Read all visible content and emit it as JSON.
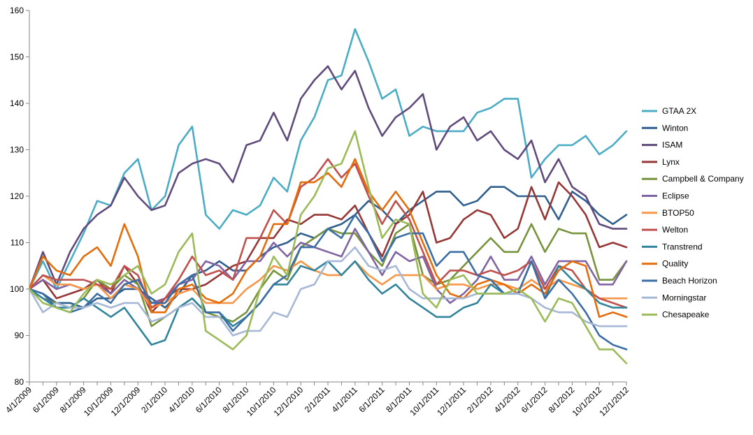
{
  "chart_data": {
    "type": "line",
    "title": "",
    "xlabel": "",
    "ylabel": "",
    "ylim": [
      80,
      160
    ],
    "yticks": [
      80,
      90,
      100,
      110,
      120,
      130,
      140,
      150,
      160
    ],
    "grid": false,
    "legend_position": "right",
    "x_tick_labels": [
      "4/1/2009",
      "6/1/2009",
      "8/1/2009",
      "10/1/2009",
      "12/1/2009",
      "2/1/2010",
      "4/1/2010",
      "6/1/2010",
      "8/1/2010",
      "10/1/2010",
      "12/1/2010",
      "2/1/2011",
      "4/1/2011",
      "6/1/2011",
      "8/1/2011",
      "10/1/2011",
      "12/1/2011",
      "2/1/2012",
      "4/1/2012",
      "6/1/2012",
      "8/1/2012",
      "10/1/2012",
      "12/1/2012"
    ],
    "x_start": "4/1/2009",
    "x_end": "12/1/2012",
    "series": [
      {
        "name": "GTAA 2X",
        "color": "#4bacc6",
        "values": [
          100,
          106,
          100,
          106,
          112,
          119,
          118,
          125,
          128,
          117,
          120,
          131,
          135,
          116,
          113,
          117,
          116,
          118,
          124,
          121,
          132,
          137,
          145,
          146,
          156,
          149,
          141,
          143,
          133,
          135,
          134,
          134,
          134,
          138,
          139,
          141,
          141,
          124,
          128,
          131,
          131,
          133,
          129,
          131,
          134
        ]
      },
      {
        "name": "Winton",
        "color": "#2e5f8f",
        "values": [
          100,
          99,
          97,
          97,
          96,
          98,
          98,
          100,
          100,
          98,
          96,
          99,
          103,
          104,
          106,
          104,
          104,
          107,
          109,
          110,
          112,
          111,
          113,
          114,
          116,
          119,
          117,
          114,
          117,
          119,
          121,
          121,
          118,
          119,
          122,
          122,
          120,
          120,
          120,
          115,
          121,
          119,
          116,
          114,
          116
        ]
      },
      {
        "name": "ISAM",
        "color": "#604a7b",
        "values": [
          100,
          108,
          101,
          108,
          113,
          116,
          118,
          124,
          120,
          117,
          118,
          125,
          127,
          128,
          127,
          123,
          131,
          132,
          138,
          132,
          141,
          145,
          148,
          143,
          147,
          139,
          133,
          137,
          139,
          142,
          130,
          135,
          137,
          132,
          134,
          130,
          128,
          132,
          123,
          128,
          122,
          120,
          114,
          113,
          113
        ]
      },
      {
        "name": "Lynx",
        "color": "#953735",
        "values": [
          100,
          102,
          98,
          99,
          100,
          102,
          99,
          105,
          101,
          95,
          98,
          100,
          100,
          101,
          103,
          105,
          106,
          111,
          111,
          115,
          114,
          116,
          116,
          115,
          118,
          112,
          107,
          114,
          116,
          121,
          110,
          111,
          115,
          117,
          116,
          111,
          113,
          122,
          115,
          123,
          120,
          116,
          109,
          110,
          109
        ]
      },
      {
        "name": "Campbell & Company",
        "color": "#77933c",
        "values": [
          100,
          98,
          97,
          96,
          98,
          102,
          100,
          103,
          101,
          92,
          94,
          96,
          98,
          95,
          94,
          93,
          95,
          100,
          104,
          102,
          109,
          111,
          113,
          112,
          112,
          108,
          105,
          112,
          114,
          103,
          101,
          102,
          105,
          108,
          111,
          108,
          108,
          114,
          108,
          113,
          112,
          112,
          102,
          102,
          106
        ]
      },
      {
        "name": "Eclipse",
        "color": "#8064a2",
        "values": [
          100,
          102,
          100,
          101,
          100,
          101,
          99,
          102,
          100,
          97,
          98,
          101,
          102,
          106,
          105,
          102,
          106,
          106,
          110,
          107,
          110,
          109,
          108,
          107,
          113,
          108,
          103,
          108,
          106,
          107,
          100,
          97,
          99,
          102,
          107,
          102,
          102,
          107,
          101,
          106,
          106,
          106,
          101,
          101,
          106
        ]
      },
      {
        "name": "BTOP50",
        "color": "#f79646",
        "values": [
          100,
          103,
          101,
          101,
          100,
          101,
          98,
          101,
          100,
          96,
          97,
          99,
          100,
          97,
          97,
          97,
          100,
          102,
          105,
          104,
          106,
          104,
          103,
          103,
          106,
          103,
          101,
          103,
          103,
          103,
          100,
          101,
          101,
          100,
          101,
          101,
          100,
          102,
          100,
          102,
          101,
          100,
          98,
          98,
          98
        ]
      },
      {
        "name": "Welton",
        "color": "#c0504d",
        "values": [
          100,
          103,
          102,
          102,
          102,
          101,
          100,
          105,
          103,
          96,
          98,
          102,
          107,
          103,
          104,
          102,
          111,
          111,
          117,
          114,
          122,
          124,
          128,
          124,
          127,
          120,
          114,
          119,
          115,
          108,
          101,
          104,
          104,
          103,
          104,
          103,
          104,
          106,
          100,
          105,
          104,
          100,
          98,
          97,
          96
        ]
      },
      {
        "name": "Transtrend",
        "color": "#31849b",
        "values": [
          100,
          98,
          96,
          96,
          98,
          96,
          94,
          96,
          92,
          88,
          89,
          96,
          98,
          95,
          95,
          92,
          94,
          97,
          101,
          101,
          105,
          104,
          106,
          103,
          106,
          102,
          99,
          101,
          98,
          96,
          94,
          94,
          96,
          97,
          101,
          99,
          99,
          106,
          98,
          105,
          102,
          100,
          97,
          96,
          96
        ]
      },
      {
        "name": "Quality",
        "color": "#e46c0a",
        "values": [
          100,
          107,
          104,
          103,
          107,
          109,
          105,
          114,
          107,
          95,
          95,
          100,
          101,
          98,
          97,
          99,
          104,
          107,
          114,
          114,
          123,
          123,
          125,
          122,
          128,
          121,
          117,
          121,
          117,
          110,
          103,
          99,
          98,
          101,
          102,
          101,
          99,
          101,
          99,
          104,
          106,
          105,
          94,
          95,
          94
        ]
      },
      {
        "name": "Beach Horizon",
        "color": "#3b6ea5",
        "values": [
          100,
          99,
          96,
          95,
          96,
          99,
          97,
          101,
          102,
          97,
          97,
          101,
          103,
          95,
          95,
          91,
          94,
          97,
          101,
          103,
          109,
          109,
          113,
          111,
          116,
          112,
          106,
          111,
          112,
          112,
          105,
          108,
          108,
          103,
          102,
          99,
          99,
          106,
          98,
          102,
          99,
          95,
          90,
          88,
          87
        ]
      },
      {
        "name": "Morningstar",
        "color": "#a6b8d6",
        "values": [
          100,
          95,
          97,
          96,
          96,
          97,
          96,
          97,
          97,
          93,
          94,
          96,
          97,
          94,
          94,
          90,
          91,
          91,
          95,
          94,
          100,
          101,
          106,
          106,
          109,
          105,
          104,
          105,
          100,
          98,
          98,
          98,
          98,
          99,
          99,
          99,
          99,
          98,
          96,
          95,
          95,
          93,
          92,
          92,
          92
        ]
      },
      {
        "name": "Chesapeake",
        "color": "#9bbb59",
        "values": [
          100,
          97,
          96,
          95,
          99,
          102,
          101,
          103,
          105,
          99,
          101,
          108,
          112,
          91,
          89,
          87,
          90,
          100,
          107,
          103,
          116,
          120,
          126,
          127,
          134,
          122,
          111,
          115,
          114,
          99,
          96,
          102,
          103,
          99,
          99,
          99,
          100,
          98,
          93,
          98,
          97,
          92,
          87,
          87,
          84
        ]
      }
    ]
  }
}
